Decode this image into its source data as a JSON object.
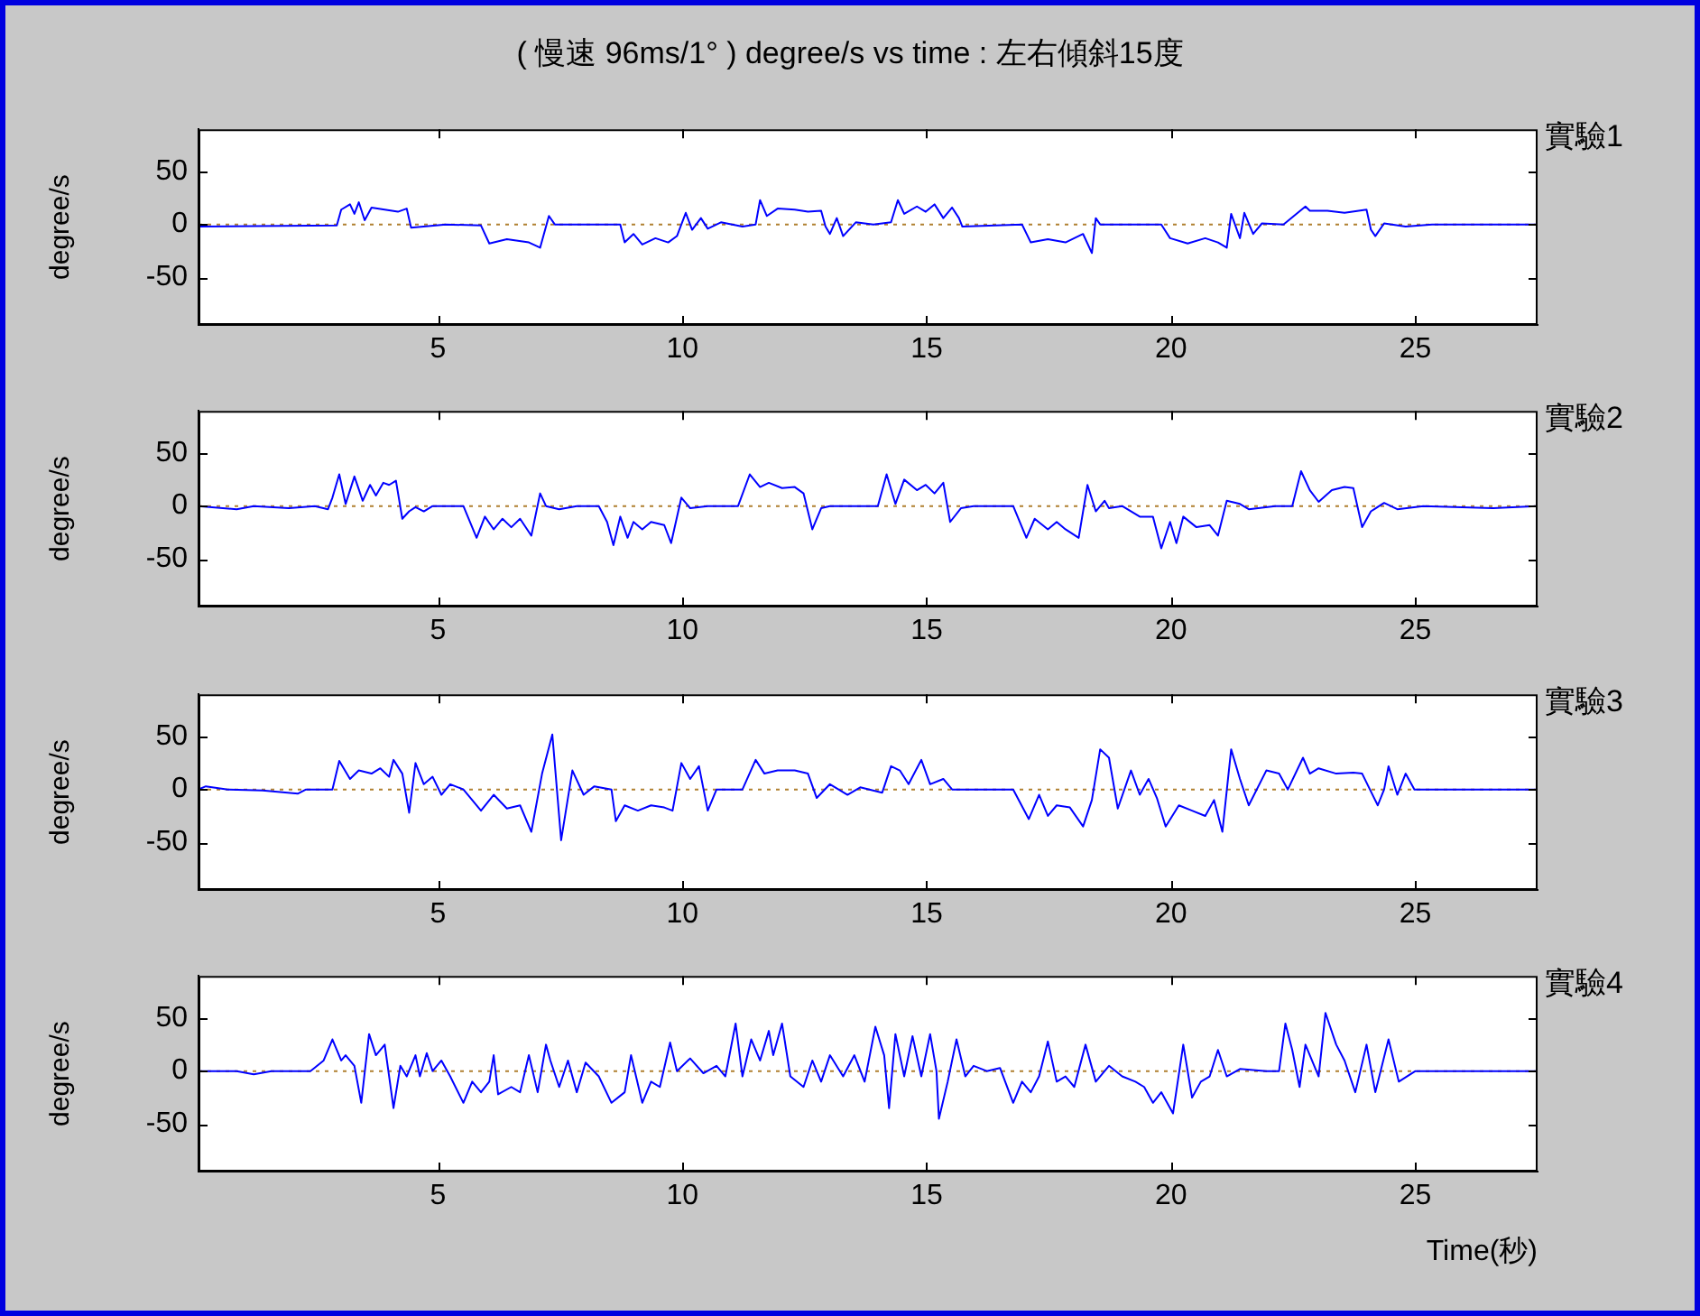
{
  "chart_data": [
    {
      "type": "line",
      "title": "( 慢速 96ms/1° ) degree/s  vs time : 左右傾斜15度",
      "ylabel": "degree/s",
      "annotations": [
        "實驗1"
      ],
      "xlim": [
        0.1,
        27.5
      ],
      "ylim": [
        -95,
        90
      ],
      "xticks": [
        5,
        10,
        15,
        20,
        25
      ],
      "yticks": [
        -50,
        0,
        50
      ],
      "grid": false,
      "legend": false,
      "marker": "none",
      "line_style": "solid",
      "color": "#0000ff",
      "ref_lines": [
        {
          "axis": "y",
          "value": 0,
          "color": "#b08030",
          "line_style": "dotted"
        }
      ],
      "x": [
        0.1,
        2.93,
        3.02,
        3.2,
        3.29,
        3.38,
        3.5,
        3.64,
        3.91,
        4.18,
        4.36,
        4.45,
        5.16,
        5.88,
        6.05,
        6.41,
        6.86,
        7.09,
        7.27,
        7.39,
        8.73,
        8.82,
        9.0,
        9.18,
        9.45,
        9.71,
        9.89,
        10.07,
        10.2,
        10.38,
        10.52,
        10.79,
        11.23,
        11.5,
        11.59,
        11.73,
        11.95,
        12.3,
        12.57,
        12.84,
        12.93,
        13.02,
        13.16,
        13.29,
        13.55,
        13.91,
        14.27,
        14.41,
        14.54,
        14.8,
        14.98,
        15.16,
        15.34,
        15.52,
        15.66,
        15.73,
        16.95,
        17.13,
        17.48,
        17.84,
        18.2,
        18.38,
        18.46,
        18.55,
        19.8,
        19.98,
        20.34,
        20.7,
        20.96,
        21.14,
        21.23,
        21.41,
        21.5,
        21.68,
        21.86,
        22.3,
        22.75,
        22.84,
        23.2,
        23.55,
        24.0,
        24.09,
        24.18,
        24.36,
        24.8,
        25.34,
        27.48
      ],
      "values": [
        -2,
        -1,
        14,
        19,
        10,
        21,
        4,
        16,
        14,
        12,
        15,
        -3,
        0,
        -1,
        -18,
        -14,
        -17,
        -22,
        8,
        0,
        0,
        -17,
        -9,
        -19,
        -13,
        -17,
        -11,
        11,
        -5,
        6,
        -4,
        2,
        -2,
        0,
        23,
        8,
        15,
        14,
        12,
        13,
        -2,
        -9,
        6,
        -11,
        2,
        0,
        2,
        23,
        10,
        17,
        12,
        19,
        6,
        16,
        6,
        -2,
        0,
        -17,
        -14,
        -17,
        -9,
        -27,
        6,
        0,
        0,
        -13,
        -18,
        -13,
        -17,
        -22,
        10,
        -13,
        11,
        -9,
        1,
        0,
        17,
        13,
        13,
        11,
        14,
        -5,
        -11,
        1,
        -2,
        0,
        0
      ]
    },
    {
      "type": "line",
      "ylabel": "degree/s",
      "annotations": [
        "實驗2"
      ],
      "xlim": [
        0.1,
        27.5
      ],
      "ylim": [
        -95,
        90
      ],
      "xticks": [
        5,
        10,
        15,
        20,
        25
      ],
      "yticks": [
        -50,
        0,
        50
      ],
      "grid": false,
      "legend": false,
      "marker": "none",
      "line_style": "solid",
      "color": "#0000ff",
      "ref_lines": [
        {
          "axis": "y",
          "value": 0,
          "color": "#b08030",
          "line_style": "dotted"
        }
      ],
      "x": [
        0.1,
        0.88,
        1.23,
        1.95,
        2.48,
        2.75,
        2.84,
        2.98,
        3.11,
        3.29,
        3.46,
        3.61,
        3.73,
        3.88,
        4.0,
        4.14,
        4.27,
        4.41,
        4.54,
        4.71,
        4.89,
        5.52,
        5.79,
        5.96,
        6.14,
        6.32,
        6.5,
        6.68,
        6.91,
        7.09,
        7.21,
        7.48,
        7.84,
        8.29,
        8.46,
        8.59,
        8.73,
        8.88,
        9.0,
        9.18,
        9.36,
        9.63,
        9.77,
        9.98,
        10.16,
        10.52,
        11.14,
        11.38,
        11.59,
        11.77,
        12.04,
        12.3,
        12.48,
        12.66,
        12.84,
        13.02,
        13.38,
        14.0,
        14.18,
        14.36,
        14.54,
        14.8,
        14.98,
        15.16,
        15.34,
        15.48,
        15.7,
        15.96,
        16.77,
        17.04,
        17.21,
        17.48,
        17.66,
        17.84,
        18.11,
        18.29,
        18.46,
        18.64,
        18.73,
        19.0,
        19.36,
        19.63,
        19.8,
        19.98,
        20.11,
        20.25,
        20.52,
        20.79,
        20.96,
        21.14,
        21.41,
        21.59,
        22.13,
        22.48,
        22.66,
        22.84,
        23.02,
        23.29,
        23.55,
        23.73,
        23.91,
        24.09,
        24.36,
        24.63,
        25.16,
        26.59,
        27.48
      ],
      "values": [
        0,
        -3,
        0,
        -2,
        0,
        -3,
        8,
        30,
        2,
        28,
        5,
        20,
        10,
        22,
        20,
        24,
        -12,
        -5,
        -1,
        -5,
        0,
        0,
        -30,
        -10,
        -22,
        -12,
        -20,
        -12,
        -28,
        12,
        0,
        -3,
        0,
        0,
        -15,
        -37,
        -10,
        -30,
        -15,
        -22,
        -15,
        -18,
        -35,
        8,
        -2,
        0,
        0,
        30,
        18,
        22,
        17,
        18,
        12,
        -22,
        -2,
        0,
        0,
        0,
        30,
        2,
        25,
        15,
        20,
        12,
        22,
        -15,
        -2,
        0,
        0,
        -30,
        -12,
        -22,
        -15,
        -22,
        -30,
        20,
        -5,
        5,
        -2,
        0,
        -10,
        -10,
        -40,
        -15,
        -35,
        -10,
        -20,
        -18,
        -28,
        5,
        2,
        -3,
        0,
        0,
        33,
        15,
        4,
        15,
        18,
        17,
        -20,
        -5,
        3,
        -3,
        0,
        -2,
        0
      ]
    },
    {
      "type": "line",
      "ylabel": "degree/s",
      "annotations": [
        "實驗3"
      ],
      "xlim": [
        0.1,
        27.5
      ],
      "ylim": [
        -95,
        90
      ],
      "xticks": [
        5,
        10,
        15,
        20,
        25
      ],
      "yticks": [
        -50,
        0,
        50
      ],
      "grid": false,
      "legend": false,
      "marker": "none",
      "line_style": "solid",
      "color": "#0000ff",
      "ref_lines": [
        {
          "axis": "y",
          "value": 0,
          "color": "#b08030",
          "line_style": "dotted"
        }
      ],
      "x": [
        0.1,
        0.25,
        0.7,
        1.41,
        2.13,
        2.3,
        2.84,
        2.98,
        3.2,
        3.38,
        3.64,
        3.82,
        4.0,
        4.09,
        4.27,
        4.41,
        4.54,
        4.71,
        4.89,
        5.07,
        5.25,
        5.52,
        5.88,
        6.14,
        6.41,
        6.68,
        6.91,
        7.13,
        7.34,
        7.52,
        7.75,
        7.98,
        8.2,
        8.55,
        8.64,
        8.82,
        9.09,
        9.36,
        9.63,
        9.8,
        9.98,
        10.16,
        10.34,
        10.52,
        10.7,
        11.23,
        11.5,
        11.68,
        11.95,
        12.3,
        12.57,
        12.75,
        13.02,
        13.38,
        13.64,
        14.09,
        14.27,
        14.45,
        14.63,
        14.89,
        15.07,
        15.34,
        15.52,
        15.88,
        16.77,
        17.09,
        17.3,
        17.48,
        17.66,
        17.93,
        18.2,
        18.38,
        18.55,
        18.73,
        18.91,
        19.18,
        19.36,
        19.54,
        19.71,
        19.89,
        20.16,
        20.43,
        20.7,
        20.88,
        21.05,
        21.23,
        21.41,
        21.59,
        21.95,
        22.21,
        22.39,
        22.7,
        22.84,
        23.02,
        23.38,
        23.73,
        23.91,
        24.23,
        24.36,
        24.45,
        24.63,
        24.8,
        24.98,
        25.7,
        26.59,
        27.48
      ],
      "values": [
        0,
        3,
        0,
        -1,
        -4,
        0,
        0,
        27,
        10,
        18,
        15,
        20,
        12,
        28,
        15,
        -22,
        25,
        5,
        12,
        -5,
        5,
        0,
        -20,
        -5,
        -18,
        -15,
        -40,
        15,
        52,
        -48,
        18,
        -5,
        3,
        0,
        -30,
        -15,
        -20,
        -15,
        -17,
        -20,
        25,
        10,
        22,
        -20,
        0,
        0,
        28,
        15,
        18,
        18,
        15,
        -8,
        5,
        -5,
        2,
        -3,
        22,
        18,
        5,
        28,
        5,
        10,
        0,
        0,
        0,
        -28,
        -5,
        -25,
        -15,
        -17,
        -35,
        -10,
        38,
        30,
        -18,
        18,
        -5,
        10,
        -8,
        -35,
        -15,
        -20,
        -25,
        -10,
        -40,
        38,
        10,
        -15,
        18,
        15,
        0,
        30,
        15,
        20,
        15,
        16,
        15,
        -15,
        0,
        22,
        -5,
        15,
        0,
        0,
        0,
        0
      ]
    },
    {
      "type": "line",
      "ylabel": "degree/s",
      "xlabel": "Time(秒)",
      "annotations": [
        "實驗4"
      ],
      "xlim": [
        0.1,
        27.5
      ],
      "ylim": [
        -95,
        90
      ],
      "xticks": [
        5,
        10,
        15,
        20,
        25
      ],
      "yticks": [
        -50,
        0,
        50
      ],
      "grid": false,
      "legend": false,
      "marker": "none",
      "line_style": "solid",
      "color": "#0000ff",
      "ref_lines": [
        {
          "axis": "y",
          "value": 0,
          "color": "#b08030",
          "line_style": "dotted"
        }
      ],
      "x": [
        0.1,
        0.88,
        1.23,
        1.59,
        2.39,
        2.66,
        2.84,
        3.02,
        3.11,
        3.29,
        3.43,
        3.59,
        3.73,
        3.91,
        4.09,
        4.23,
        4.36,
        4.54,
        4.63,
        4.77,
        4.89,
        5.07,
        5.25,
        5.52,
        5.7,
        5.88,
        6.05,
        6.14,
        6.23,
        6.5,
        6.68,
        6.86,
        7.04,
        7.21,
        7.3,
        7.48,
        7.66,
        7.84,
        8.02,
        8.29,
        8.55,
        8.82,
        8.95,
        9.18,
        9.36,
        9.54,
        9.75,
        9.89,
        10.16,
        10.43,
        10.7,
        10.88,
        11.09,
        11.23,
        11.41,
        11.59,
        11.77,
        11.86,
        12.04,
        12.21,
        12.48,
        12.66,
        12.84,
        13.02,
        13.29,
        13.52,
        13.73,
        13.95,
        14.13,
        14.23,
        14.36,
        14.54,
        14.71,
        14.89,
        15.07,
        15.2,
        15.25,
        15.43,
        15.61,
        15.79,
        15.96,
        16.23,
        16.5,
        16.77,
        16.95,
        17.13,
        17.3,
        17.48,
        17.66,
        17.84,
        18.02,
        18.25,
        18.46,
        18.73,
        19.0,
        19.27,
        19.45,
        19.63,
        19.8,
        20.04,
        20.25,
        20.43,
        20.61,
        20.79,
        20.96,
        21.14,
        21.41,
        21.95,
        22.21,
        22.34,
        22.48,
        22.63,
        22.75,
        23.02,
        23.16,
        23.38,
        23.55,
        23.77,
        24.0,
        24.18,
        24.45,
        24.66,
        25.0,
        25.34,
        26.59,
        27.48
      ],
      "values": [
        0,
        0,
        -3,
        0,
        0,
        10,
        30,
        10,
        15,
        5,
        -30,
        35,
        15,
        25,
        -35,
        5,
        -5,
        15,
        -5,
        17,
        0,
        10,
        -5,
        -30,
        -10,
        -20,
        -10,
        15,
        -22,
        -15,
        -20,
        15,
        -20,
        25,
        10,
        -15,
        10,
        -20,
        8,
        -5,
        -30,
        -20,
        15,
        -30,
        -10,
        -15,
        27,
        0,
        12,
        -2,
        5,
        -5,
        45,
        -5,
        30,
        10,
        38,
        15,
        45,
        -5,
        -15,
        10,
        -10,
        15,
        -5,
        15,
        -10,
        42,
        15,
        -35,
        35,
        -5,
        33,
        -5,
        35,
        0,
        -45,
        -10,
        30,
        -5,
        5,
        0,
        3,
        -30,
        -10,
        -20,
        -5,
        28,
        -10,
        -5,
        -15,
        25,
        -10,
        5,
        -5,
        -10,
        -15,
        -30,
        -20,
        -40,
        25,
        -25,
        -10,
        -5,
        20,
        -5,
        2,
        0,
        0,
        45,
        20,
        -15,
        25,
        -5,
        55,
        25,
        10,
        -20,
        25,
        -20,
        30,
        -10,
        0,
        0,
        0,
        0
      ]
    }
  ]
}
